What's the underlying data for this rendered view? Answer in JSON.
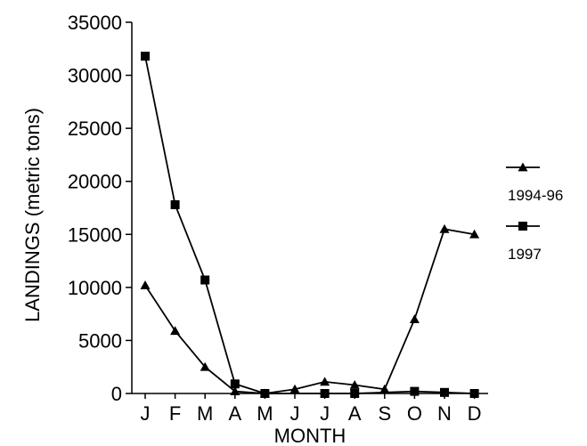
{
  "chart_data": {
    "type": "line",
    "xlabel": "MONTH",
    "ylabel": "LANDINGS (metric tons)",
    "categories": [
      "J",
      "F",
      "M",
      "A",
      "M",
      "J",
      "J",
      "A",
      "S",
      "O",
      "N",
      "D"
    ],
    "ylim": [
      0,
      35000
    ],
    "yticks": [
      0,
      5000,
      10000,
      15000,
      20000,
      25000,
      30000,
      35000
    ],
    "grid": false,
    "legend_position": "right",
    "series": [
      {
        "name": "1994-96",
        "marker": "triangle",
        "values": [
          10200,
          5900,
          2500,
          200,
          0,
          400,
          1100,
          800,
          400,
          7000,
          15500,
          15000
        ]
      },
      {
        "name": "1997",
        "marker": "square",
        "values": [
          31800,
          17800,
          10700,
          900,
          0,
          null,
          0,
          0,
          null,
          200,
          100,
          0
        ]
      }
    ],
    "line_color": "#000000"
  }
}
